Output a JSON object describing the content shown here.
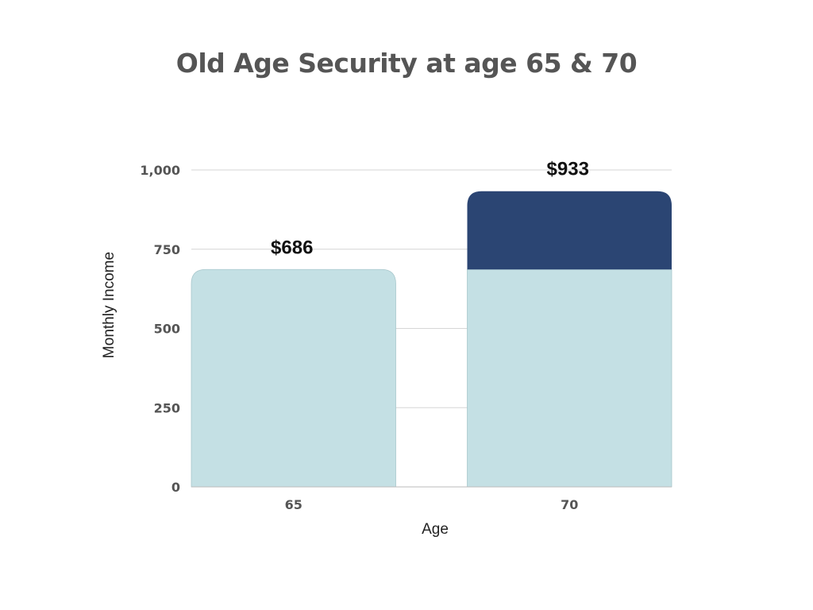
{
  "chart_data": {
    "type": "bar",
    "title": "Old Age Security at age 65 & 70",
    "xlabel": "Age",
    "ylabel": "Monthly Income",
    "categories": [
      "65",
      "70"
    ],
    "series": [
      {
        "values": [
          686,
          686
        ],
        "color": "#c4e0e4"
      },
      {
        "values": [
          0,
          247
        ],
        "color": "#2b4573"
      }
    ],
    "totals": [
      686,
      933
    ],
    "data_labels": [
      "$686",
      "$933"
    ],
    "ylim": [
      0,
      1000
    ],
    "yticks": [
      0,
      250,
      500,
      750,
      1000
    ],
    "ytick_labels": [
      "0",
      "250",
      "500",
      "750",
      "1,000"
    ],
    "stacked": true,
    "grid": true,
    "legend": false
  }
}
